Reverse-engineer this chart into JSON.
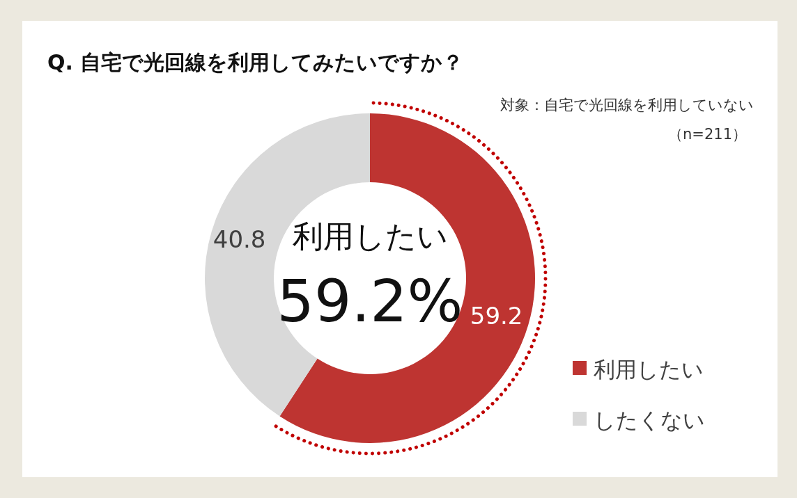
{
  "chart_data": {
    "type": "donut",
    "title": "Q. 自宅で光回線を利用してみたいですか？",
    "subtitle": "対象：自宅で光回線を利用していない",
    "annotations": [
      "（n=211）",
      "利用したい",
      "59.2%"
    ],
    "categories": [
      "利用したい",
      "したくない"
    ],
    "values": [
      59.2,
      40.8
    ],
    "colors": [
      "#be3431",
      "#d9d9d9"
    ],
    "data_labels": true,
    "legend": "bottom right"
  }
}
